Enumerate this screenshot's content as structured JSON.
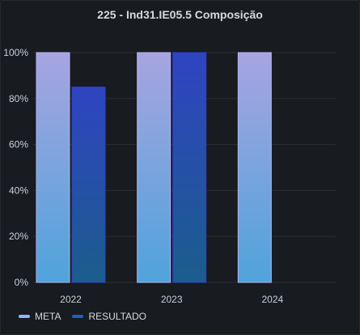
{
  "panel": {
    "title": "225 - Ind31.IE05.5 Composição"
  },
  "chart_data": {
    "type": "bar",
    "title": "225 - Ind31.IE05.5 Composição",
    "categories": [
      "2022",
      "2023",
      "2024"
    ],
    "series": [
      {
        "name": "META",
        "values": [
          100,
          100,
          100
        ],
        "color": "#8ab8ff"
      },
      {
        "name": "RESULTADO",
        "values": [
          85,
          100,
          null
        ],
        "color": "#1f60c4"
      }
    ],
    "y_ticks": [
      "0%",
      "20%",
      "40%",
      "60%",
      "80%",
      "100%"
    ],
    "ylim": [
      0,
      100
    ],
    "grid": true,
    "legend_position": "bottom-left"
  }
}
